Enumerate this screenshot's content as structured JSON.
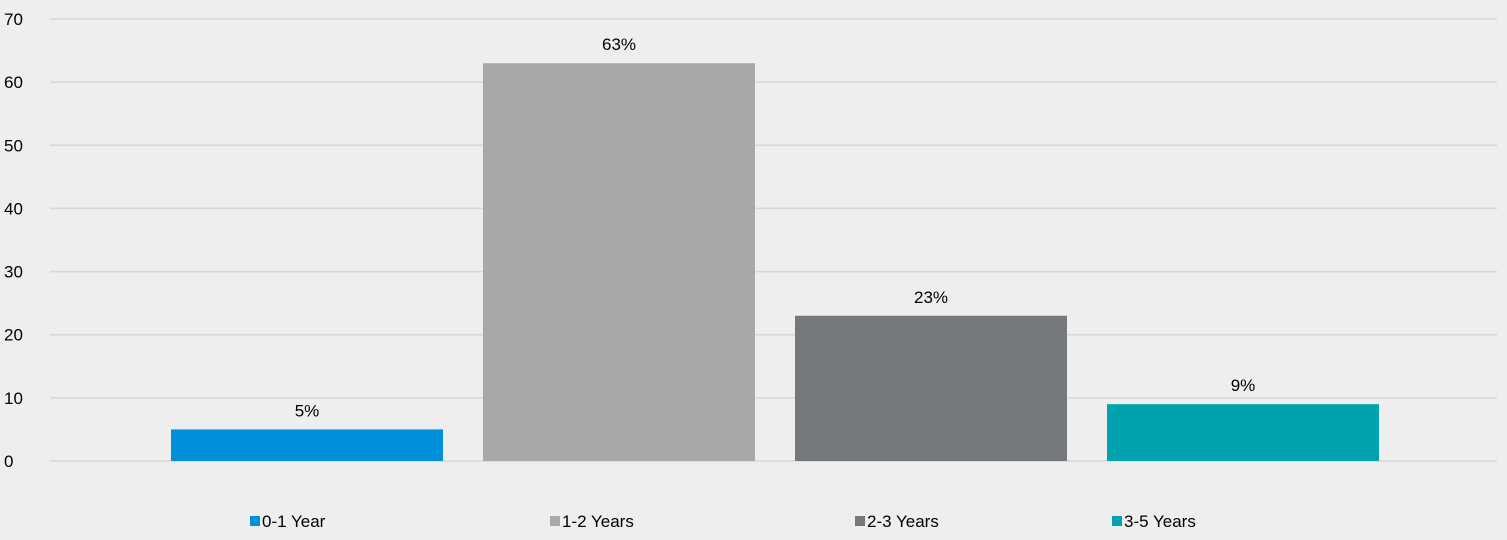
{
  "chart_data": {
    "type": "bar",
    "categories": [
      "0-1 Year",
      "1-2 Years",
      "2-3 Years",
      "3-5 Years"
    ],
    "values": [
      5,
      63,
      23,
      9
    ],
    "data_labels": [
      "5%",
      "63%",
      "23%",
      "9%"
    ],
    "colors": [
      "#0090d9",
      "#a7a8a9",
      "#76797b",
      "#00a3ad"
    ],
    "ylim": [
      0,
      70
    ],
    "yticks": [
      0,
      10,
      20,
      30,
      40,
      50,
      60,
      70
    ],
    "title": "",
    "xlabel": "",
    "ylabel": "",
    "grid": true,
    "legend": "bottom",
    "background": "#edeeed"
  }
}
